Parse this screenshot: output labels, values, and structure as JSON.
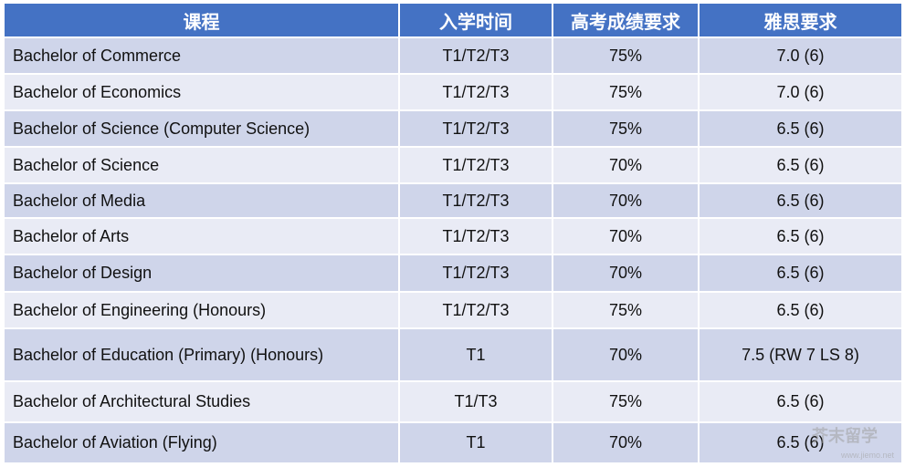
{
  "table": {
    "header": [
      "课程",
      "入学时间",
      "高考成绩要求",
      "雅思要求"
    ],
    "rows": [
      [
        "Bachelor of Commerce",
        "T1/T2/T3",
        "75%",
        "7.0 (6)"
      ],
      [
        "Bachelor of Economics",
        "T1/T2/T3",
        "75%",
        "7.0 (6)"
      ],
      [
        "Bachelor of Science (Computer Science)",
        "T1/T2/T3",
        "75%",
        "6.5 (6)"
      ],
      [
        "Bachelor of Science",
        "T1/T2/T3",
        "70%",
        "6.5 (6)"
      ],
      [
        "Bachelor of Media",
        "T1/T2/T3",
        "70%",
        "6.5 (6)"
      ],
      [
        "Bachelor of Arts",
        "T1/T2/T3",
        "70%",
        "6.5 (6)"
      ],
      [
        "Bachelor of Design",
        "T1/T2/T3",
        "70%",
        "6.5 (6)"
      ],
      [
        "Bachelor of Engineering (Honours)",
        "T1/T2/T3",
        "75%",
        "6.5 (6)"
      ],
      [
        "Bachelor of Education (Primary) (Honours)",
        "T1",
        "70%",
        "7.5 (RW 7 LS 8)"
      ],
      [
        "Bachelor of Architectural Studies",
        "T1/T3",
        "75%",
        "6.5 (6)"
      ],
      [
        "Bachelor of Aviation (Flying)",
        "T1",
        "70%",
        "6.5 (6)"
      ]
    ]
  },
  "watermark": {
    "name": "芥末留学",
    "url": "www.jiemo.net"
  }
}
